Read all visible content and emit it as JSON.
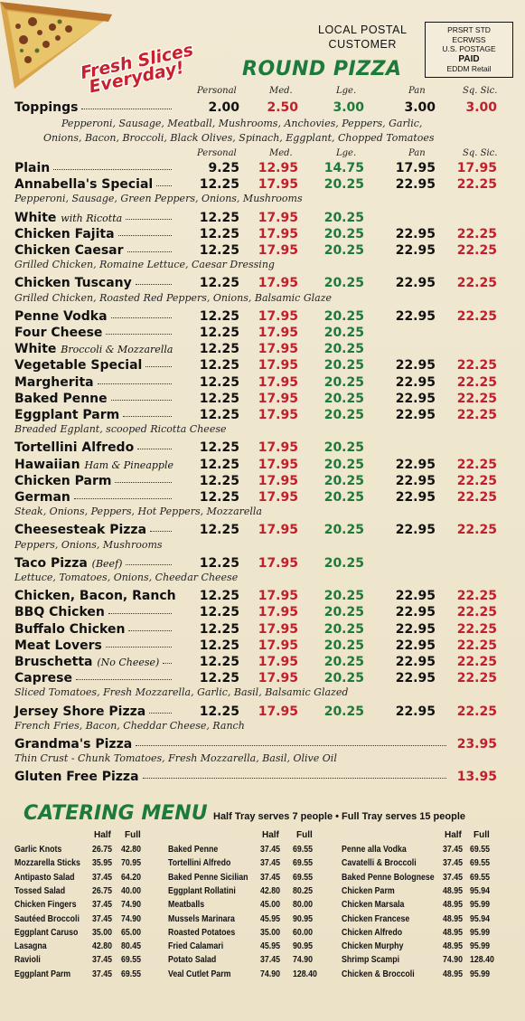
{
  "promo": {
    "line1": "Fresh Slices",
    "line2": "Everyday!"
  },
  "postal": {
    "line1": "LOCAL POSTAL",
    "line2": "CUSTOMER"
  },
  "stamp": {
    "l1": "PRSRT STD",
    "l2": "ECRWSS",
    "l3": "U.S. POSTAGE",
    "l4": "PAID",
    "l5": "EDDM Retail"
  },
  "title": "ROUND PIZZA",
  "size_headers": [
    "Personal",
    "Med.",
    "Lge.",
    "Pan",
    "Sq. Sic."
  ],
  "toppings": {
    "name": "Toppings",
    "prices": [
      "2.00",
      "2.50",
      "3.00",
      "3.00",
      "3.00"
    ],
    "desc1": "Pepperoni, Sausage, Meatball, Mushrooms, Anchovies, Peppers, Garlic,",
    "desc2": "Onions, Bacon, Broccoli, Black Olives, Spinach, Eggplant, Chopped Tomatoes"
  },
  "pizzas": [
    {
      "name": "Plain",
      "note": "",
      "prices": [
        "9.25",
        "12.95",
        "14.75",
        "17.95",
        "17.95"
      ],
      "desc": ""
    },
    {
      "name": "Annabella's Special",
      "note": "",
      "prices": [
        "12.25",
        "17.95",
        "20.25",
        "22.95",
        "22.25"
      ],
      "desc": "Pepperoni, Sausage, Green Peppers, Onions, Mushrooms"
    },
    {
      "name": "White",
      "note": "with Ricotta",
      "prices": [
        "12.25",
        "17.95",
        "20.25",
        "",
        ""
      ],
      "desc": ""
    },
    {
      "name": "Chicken Fajita",
      "note": "",
      "prices": [
        "12.25",
        "17.95",
        "20.25",
        "22.95",
        "22.25"
      ],
      "desc": ""
    },
    {
      "name": "Chicken Caesar",
      "note": "",
      "prices": [
        "12.25",
        "17.95",
        "20.25",
        "22.95",
        "22.25"
      ],
      "desc": "Grilled Chicken, Romaine Lettuce, Caesar Dressing"
    },
    {
      "name": "Chicken Tuscany",
      "note": "",
      "prices": [
        "12.25",
        "17.95",
        "20.25",
        "22.95",
        "22.25"
      ],
      "desc": "Grilled Chicken, Roasted Red Peppers, Onions, Balsamic Glaze"
    },
    {
      "name": "Penne Vodka",
      "note": "",
      "prices": [
        "12.25",
        "17.95",
        "20.25",
        "22.95",
        "22.25"
      ],
      "desc": ""
    },
    {
      "name": "Four Cheese",
      "note": "",
      "prices": [
        "12.25",
        "17.95",
        "20.25",
        "",
        ""
      ],
      "desc": ""
    },
    {
      "name": "White",
      "note": "Broccoli & Mozzarella",
      "prices": [
        "12.25",
        "17.95",
        "20.25",
        "",
        ""
      ],
      "desc": ""
    },
    {
      "name": "Vegetable Special",
      "note": "",
      "prices": [
        "12.25",
        "17.95",
        "20.25",
        "22.95",
        "22.25"
      ],
      "desc": ""
    },
    {
      "name": "Margherita",
      "note": "",
      "prices": [
        "12.25",
        "17.95",
        "20.25",
        "22.95",
        "22.25"
      ],
      "desc": ""
    },
    {
      "name": "Baked Penne",
      "note": "",
      "prices": [
        "12.25",
        "17.95",
        "20.25",
        "22.95",
        "22.25"
      ],
      "desc": ""
    },
    {
      "name": "Eggplant Parm",
      "note": "",
      "prices": [
        "12.25",
        "17.95",
        "20.25",
        "22.95",
        "22.25"
      ],
      "desc": "Breaded Egplant, scooped Ricotta Cheese"
    },
    {
      "name": "Tortellini Alfredo",
      "note": "",
      "prices": [
        "12.25",
        "17.95",
        "20.25",
        "",
        ""
      ],
      "desc": ""
    },
    {
      "name": "Hawaiian",
      "note": "Ham & Pineapple",
      "prices": [
        "12.25",
        "17.95",
        "20.25",
        "22.95",
        "22.25"
      ],
      "desc": ""
    },
    {
      "name": "Chicken Parm",
      "note": "",
      "prices": [
        "12.25",
        "17.95",
        "20.25",
        "22.95",
        "22.25"
      ],
      "desc": ""
    },
    {
      "name": "German",
      "note": "",
      "prices": [
        "12.25",
        "17.95",
        "20.25",
        "22.95",
        "22.25"
      ],
      "desc": "Steak, Onions, Peppers, Hot Peppers, Mozzarella"
    },
    {
      "name": "Cheesesteak Pizza",
      "note": "",
      "prices": [
        "12.25",
        "17.95",
        "20.25",
        "22.95",
        "22.25"
      ],
      "desc": "Peppers, Onions, Mushrooms"
    },
    {
      "name": "Taco Pizza",
      "note": "(Beef)",
      "prices": [
        "12.25",
        "17.95",
        "20.25",
        "",
        ""
      ],
      "desc": "Lettuce, Tomatoes, Onions, Cheedar Cheese"
    },
    {
      "name": "Chicken, Bacon, Ranch",
      "note": "",
      "prices": [
        "12.25",
        "17.95",
        "20.25",
        "22.95",
        "22.25"
      ],
      "desc": ""
    },
    {
      "name": "BBQ Chicken",
      "note": "",
      "prices": [
        "12.25",
        "17.95",
        "20.25",
        "22.95",
        "22.25"
      ],
      "desc": ""
    },
    {
      "name": "Buffalo Chicken",
      "note": "",
      "prices": [
        "12.25",
        "17.95",
        "20.25",
        "22.95",
        "22.25"
      ],
      "desc": ""
    },
    {
      "name": "Meat Lovers",
      "note": "",
      "prices": [
        "12.25",
        "17.95",
        "20.25",
        "22.95",
        "22.25"
      ],
      "desc": ""
    },
    {
      "name": "Bruschetta",
      "note": "(No Cheese)",
      "prices": [
        "12.25",
        "17.95",
        "20.25",
        "22.95",
        "22.25"
      ],
      "desc": ""
    },
    {
      "name": "Caprese",
      "note": "",
      "prices": [
        "12.25",
        "17.95",
        "20.25",
        "22.95",
        "22.25"
      ],
      "desc": "Sliced Tomatoes, Fresh Mozzarella, Garlic, Basil, Balsamic Glazed"
    },
    {
      "name": "Jersey Shore Pizza",
      "note": "",
      "prices": [
        "12.25",
        "17.95",
        "20.25",
        "22.95",
        "22.25"
      ],
      "desc": "French Fries, Bacon, Cheddar Cheese, Ranch"
    }
  ],
  "grandma": {
    "name": "Grandma's Pizza",
    "price": "23.95",
    "desc": "Thin Crust - Chunk Tomatoes, Fresh Mozzarella, Basil, Olive Oil"
  },
  "gluten": {
    "name": "Gluten Free Pizza",
    "price": "13.95"
  },
  "catering": {
    "title": "CATERING MENU",
    "subtitle": "Half Tray serves 7 people  •  Full Tray serves 15 people",
    "half_label": "Half",
    "full_label": "Full",
    "col1": [
      {
        "name": "Garlic Knots",
        "half": "26.75",
        "full": "42.80"
      },
      {
        "name": "Mozzarella Sticks",
        "half": "35.95",
        "full": "70.95"
      },
      {
        "name": "Antipasto Salad",
        "half": "37.45",
        "full": "64.20"
      },
      {
        "name": "Tossed Salad",
        "half": "26.75",
        "full": "40.00"
      },
      {
        "name": "Chicken Fingers",
        "half": "37.45",
        "full": "74.90"
      },
      {
        "name": "Sautéed Broccoli",
        "half": "37.45",
        "full": "74.90"
      },
      {
        "name": "Eggplant Caruso",
        "half": "35.00",
        "full": "65.00"
      },
      {
        "name": "Lasagna",
        "half": "42.80",
        "full": "80.45"
      },
      {
        "name": "Ravioli",
        "half": "37.45",
        "full": "69.55"
      },
      {
        "name": "Eggplant Parm",
        "half": "37.45",
        "full": "69.55"
      }
    ],
    "col2": [
      {
        "name": "Baked Penne",
        "half": "37.45",
        "full": "69.55"
      },
      {
        "name": "Tortellini Alfredo",
        "half": "37.45",
        "full": "69.55"
      },
      {
        "name": "Baked Penne Sicilian",
        "half": "37.45",
        "full": "69.55"
      },
      {
        "name": "Eggplant Rollatini",
        "half": "42.80",
        "full": "80.25"
      },
      {
        "name": "Meatballs",
        "half": "45.00",
        "full": "80.00"
      },
      {
        "name": "Mussels Marinara",
        "half": "45.95",
        "full": "90.95"
      },
      {
        "name": "Roasted Potatoes",
        "half": "35.00",
        "full": "60.00"
      },
      {
        "name": "Fried Calamari",
        "half": "45.95",
        "full": "90.95"
      },
      {
        "name": "Potato Salad",
        "half": "37.45",
        "full": "74.90"
      },
      {
        "name": "Veal Cutlet Parm",
        "half": "74.90",
        "full": "128.40"
      }
    ],
    "col3": [
      {
        "name": "Penne alla Vodka",
        "half": "37.45",
        "full": "69.55"
      },
      {
        "name": "Cavatelli & Broccoli",
        "half": "37.45",
        "full": "69.55"
      },
      {
        "name": "Baked Penne Bolognese",
        "half": "37.45",
        "full": "69.55"
      },
      {
        "name": "Chicken Parm",
        "half": "48.95",
        "full": "95.94"
      },
      {
        "name": "Chicken Marsala",
        "half": "48.95",
        "full": "95.99"
      },
      {
        "name": "Chicken Francese",
        "half": "48.95",
        "full": "95.94"
      },
      {
        "name": "Chicken Alfredo",
        "half": "48.95",
        "full": "95.99"
      },
      {
        "name": "Chicken Murphy",
        "half": "48.95",
        "full": "95.99"
      },
      {
        "name": "Shrimp Scampi",
        "half": "74.90",
        "full": "128.40"
      },
      {
        "name": "Chicken & Broccoli",
        "half": "48.95",
        "full": "95.99"
      }
    ]
  }
}
